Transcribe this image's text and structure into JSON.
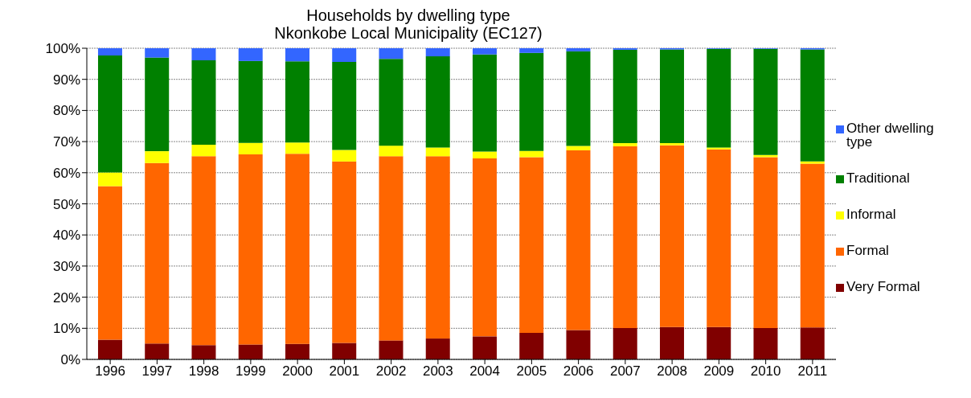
{
  "chart_data": {
    "type": "bar",
    "title": "Households by dwelling type",
    "subtitle": "Nkonkobe Local Municipality (EC127)",
    "categories": [
      "1996",
      "1997",
      "1998",
      "1999",
      "2000",
      "2001",
      "2002",
      "2003",
      "2004",
      "2005",
      "2006",
      "2007",
      "2008",
      "2009",
      "2010",
      "2011"
    ],
    "stacked": true,
    "grid": "y",
    "legend": "right",
    "ylim": [
      0,
      100
    ],
    "yticks": [
      {
        "value": 0,
        "label": "0%"
      },
      {
        "value": 10,
        "label": "10%"
      },
      {
        "value": 20,
        "label": "20%"
      },
      {
        "value": 30,
        "label": "30%"
      },
      {
        "value": 40,
        "label": "40%"
      },
      {
        "value": 50,
        "label": "50%"
      },
      {
        "value": 60,
        "label": "60%"
      },
      {
        "value": 70,
        "label": "70%"
      },
      {
        "value": 80,
        "label": "80%"
      },
      {
        "value": 90,
        "label": "90%"
      },
      {
        "value": 100,
        "label": "100%"
      }
    ],
    "series": [
      {
        "name": "Very Formal",
        "color": "#800000",
        "values": [
          6.3,
          5.1,
          4.6,
          4.8,
          5.0,
          5.3,
          6.1,
          6.7,
          7.4,
          8.5,
          9.4,
          10.1,
          10.4,
          10.4,
          10.1,
          10.3
        ]
      },
      {
        "name": "Formal",
        "color": "#ff6600",
        "values": [
          49.4,
          58.0,
          60.7,
          61.1,
          61.1,
          58.3,
          59.2,
          58.6,
          57.2,
          56.5,
          57.8,
          58.4,
          58.4,
          57.1,
          54.9,
          52.6
        ]
      },
      {
        "name": "Informal",
        "color": "#ffff00",
        "values": [
          4.4,
          3.8,
          3.7,
          3.7,
          3.6,
          3.7,
          3.4,
          2.8,
          2.2,
          2.0,
          1.4,
          1.0,
          0.7,
          0.6,
          0.7,
          0.7
        ]
      },
      {
        "name": "Traditional",
        "color": "#008000",
        "values": [
          37.6,
          30.1,
          27.1,
          26.3,
          26.1,
          28.3,
          27.9,
          29.3,
          31.2,
          31.5,
          30.4,
          30.0,
          30.1,
          31.7,
          34.1,
          36.0
        ]
      },
      {
        "name": "Other dwelling type",
        "color": "#3366ff",
        "values": [
          2.3,
          3.0,
          3.9,
          4.1,
          4.2,
          4.4,
          3.4,
          2.6,
          2.0,
          1.5,
          1.0,
          0.5,
          0.4,
          0.2,
          0.2,
          0.4
        ]
      }
    ]
  }
}
